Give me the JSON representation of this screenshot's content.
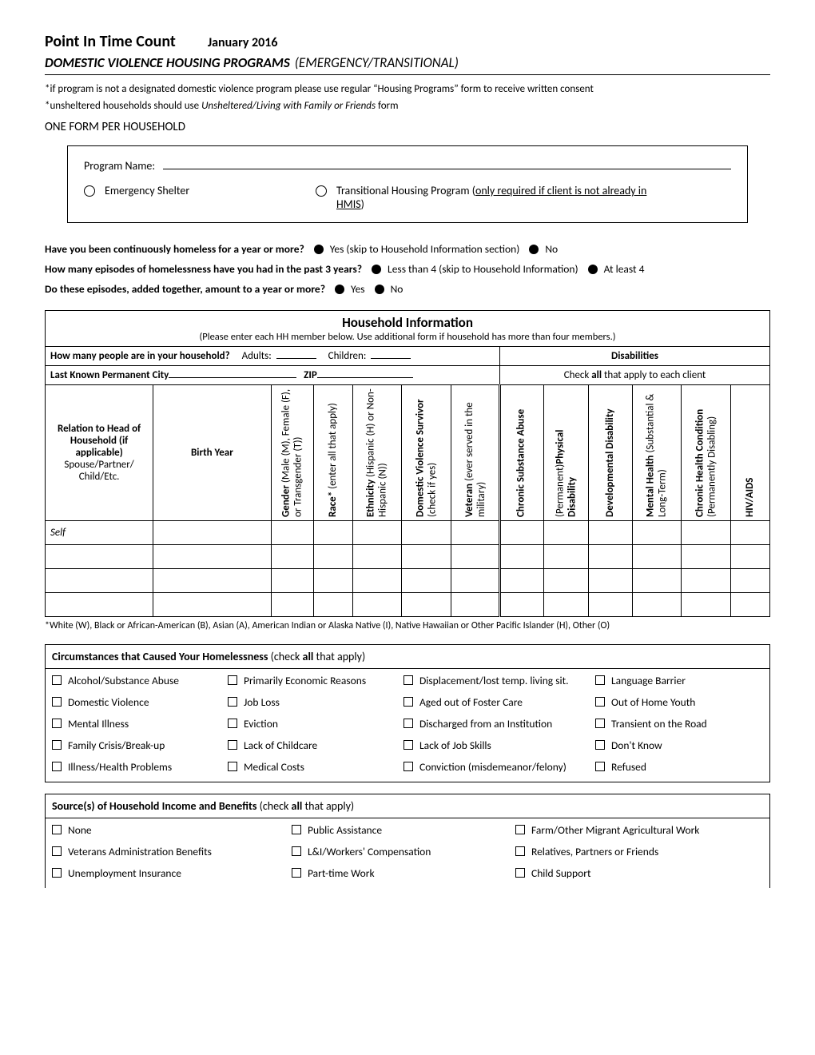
{
  "header": {
    "title": "Point In Time Count",
    "date": "January 2016",
    "subtitle_bold": "DOMESTIC VIOLENCE HOUSING PROGRAMS",
    "subtitle_rest": "(EMERGENCY/TRANSITIONAL)",
    "note1": "*if program is not a designated domestic violence program please use regular “Housing Programs” form to receive written consent",
    "note2_prefix": "*unsheltered households should use ",
    "note2_italic": "Unsheltered/Living with Family or Friends",
    "note2_suffix": " form",
    "one_form": "ONE FORM PER HOUSEHOLD"
  },
  "program_box": {
    "program_name_label": "Program Name:",
    "opt1": "Emergency Shelter",
    "opt2_pre": "Transitional Housing Program (",
    "opt2_u": "only required if client is not already in HMIS",
    "opt2_post": ")"
  },
  "questions": {
    "q1": "Have you been continuously homeless for a year or more?",
    "q1_yes": "Yes (skip to Household Information section)",
    "q1_no": "No",
    "q2": "How many episodes of homelessness have you had in the past 3 years?",
    "q2_a": "Less than 4 (skip to Household Information)",
    "q2_b": "At least 4",
    "q3": "Do these episodes, added together, amount to a year or more?",
    "q3_yes": "Yes",
    "q3_no": "No"
  },
  "hh": {
    "title": "Household Information",
    "sub": "(Please enter each HH member below.  Use additional form if household has more than four members.)",
    "count_q": "How many people are in your household?",
    "adults": "Adults:",
    "children": "Children:",
    "disabilities": "Disabilities",
    "city_label": "Last Known Permanent City",
    "zip_label": "ZIP",
    "check_all": "Check all that apply to each client",
    "col_relation_1": "Relation to Head of Household (if applicable)",
    "col_relation_2": "Spouse/Partner/ Child/Etc.",
    "col_birth": "Birth Year",
    "col_gender": "Gender (Male (M), Female (F), or Transgender (T))",
    "col_race": "Race* (enter all that apply)",
    "col_eth": "Ethnicity (Hispanic (H) or Non-Hispanic (N))",
    "col_dv": "Domestic Violence Survivor (check if yes)",
    "col_vet": "Veteran  (ever served in the military)",
    "col_csa": "Chronic Substance Abuse",
    "col_phys": "(Permanent)Physical Disability",
    "col_dev": "Developmental Disability",
    "col_mh": "Mental Health (Substantial & Long-Term)",
    "col_chc": "Chronic Health Condition (Permanently Disabling)",
    "col_hiv": "HIV/AIDS",
    "self": "Self",
    "race_note": "*White (W), Black or African-American (B), Asian (A), American Indian or Alaska Native (I), Native Hawaiian or Other Pacific Islander (H), Other (O)"
  },
  "circ": {
    "title_b": "Circumstances that Caused Your Homelessness",
    "title_rest": " (check all that apply)",
    "items": [
      "Alcohol/Substance Abuse",
      "Primarily Economic Reasons",
      "Displacement/lost temp. living sit.",
      "Language Barrier",
      "Domestic Violence",
      "Job Loss",
      "Aged out of Foster Care",
      "Out of Home Youth",
      "Mental Illness",
      "Eviction",
      "Discharged from an Institution",
      "Transient on the Road",
      "Family Crisis/Break-up",
      "Lack of Childcare",
      "Lack of Job Skills",
      "Don't Know",
      "Illness/Health Problems",
      "Medical Costs",
      "Conviction (misdemeanor/felony)",
      "Refused"
    ]
  },
  "income": {
    "title_b": "Source(s) of Household Income and Benefits",
    "title_rest": " (check all that apply)",
    "items": [
      "None",
      "Public Assistance",
      "Farm/Other Migrant Agricultural Work",
      "Veterans Administration Benefits",
      "L&I/Workers' Compensation",
      "Relatives, Partners or Friends",
      "Unemployment Insurance",
      "Part-time Work",
      "Child Support"
    ]
  },
  "colors": {
    "text": "#000000",
    "bg": "#ffffff",
    "border": "#000000"
  }
}
